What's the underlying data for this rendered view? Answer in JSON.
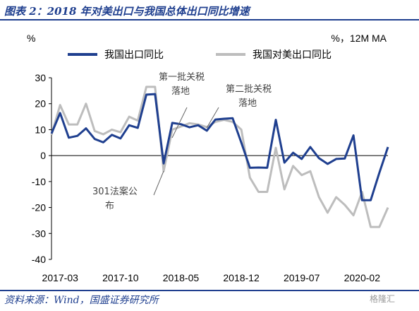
{
  "figure_title": "图表 2：2018 年对美出口与我国总体出口同比增速",
  "source": "资料来源：Wind，国盛证券研究所",
  "watermark": "格隆汇",
  "chart_data": {
    "type": "line",
    "y_unit_left": "%",
    "y_unit_right": "%，12M MA",
    "ylim": [
      -40,
      30
    ],
    "yticks": [
      -40,
      -30,
      -20,
      -10,
      0,
      10,
      20,
      30
    ],
    "xticks": [
      "2017-03",
      "2017-10",
      "2018-05",
      "2018-12",
      "2019-07",
      "2020-02"
    ],
    "legend_position": "top",
    "categories": [
      "2017-02",
      "2017-03",
      "2017-04",
      "2017-05",
      "2017-06",
      "2017-07",
      "2017-08",
      "2017-09",
      "2017-10",
      "2017-11",
      "2017-12",
      "2018-01",
      "2018-02",
      "2018-03",
      "2018-04",
      "2018-05",
      "2018-06",
      "2018-07",
      "2018-08",
      "2018-09",
      "2018-10",
      "2018-11",
      "2018-12",
      "2019-01",
      "2019-02",
      "2019-03",
      "2019-04",
      "2019-05",
      "2019-06",
      "2019-07",
      "2019-08",
      "2019-09",
      "2019-10",
      "2019-11",
      "2019-12",
      "2020-01",
      "2020-02",
      "2020-03",
      "2020-04",
      "2020-05"
    ],
    "series": [
      {
        "name": "我国出口同比",
        "color": "#1f3f8f",
        "values": [
          8.5,
          16.4,
          6.9,
          7.6,
          10.5,
          6.4,
          5.1,
          8.0,
          6.6,
          11.7,
          10.7,
          23.5,
          23.7,
          -3.0,
          12.6,
          12.1,
          10.9,
          11.7,
          9.6,
          13.9,
          14.2,
          14.4,
          5.0,
          -4.7,
          -4.6,
          -4.7,
          13.8,
          -2.7,
          1.1,
          -1.3,
          3.3,
          -1.0,
          -3.2,
          -1.3,
          -1.1,
          7.8,
          -17.2,
          -17.2,
          -6.6,
          3.3
        ]
      },
      {
        "name": "我国对美出口同比",
        "color": "#bdbdbd",
        "values": [
          8.0,
          19.5,
          12.0,
          12.0,
          20.0,
          9.5,
          8.2,
          10.0,
          9.0,
          15.0,
          13.5,
          26.5,
          26.5,
          -6.0,
          10.0,
          11.2,
          12.5,
          12.0,
          11.0,
          13.0,
          13.8,
          13.0,
          10.0,
          -8.5,
          -14.0,
          -14.0,
          3.0,
          -13.0,
          -4.0,
          -7.5,
          -6.0,
          -16.0,
          -22.0,
          -16.0,
          -19.0,
          -23.0,
          -14.0,
          -27.5,
          -27.5,
          -20.0
        ]
      }
    ],
    "annotations": [
      {
        "text": "第一批关税 落地",
        "x": "2018-07"
      },
      {
        "text": "第二批关税 落地",
        "x": "2018-09"
      },
      {
        "text": "301法案公 布",
        "x": "2018-03"
      }
    ]
  }
}
